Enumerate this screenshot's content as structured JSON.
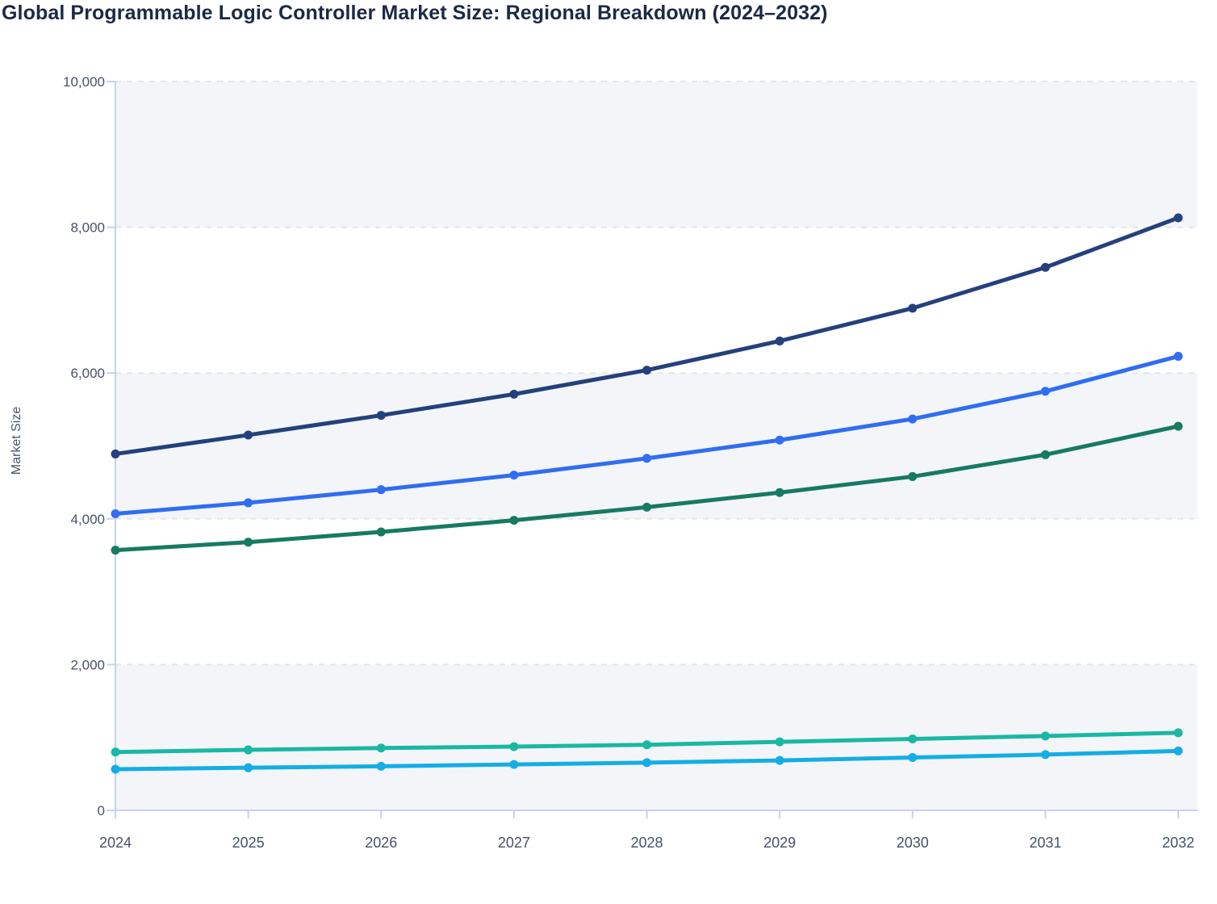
{
  "chart_data": {
    "type": "line",
    "title": "Global Programmable Logic Controller Market Size: Regional Breakdown (2024–2032)",
    "xlabel": "",
    "ylabel": "Market Size",
    "legend": "none",
    "grid": "horizontal-dashed",
    "ylim": [
      0,
      10000
    ],
    "x": [
      "2024",
      "2025",
      "2026",
      "2027",
      "2028",
      "2029",
      "2030",
      "2031",
      "2032"
    ],
    "y_ticks": [
      {
        "value": 0,
        "label": "0"
      },
      {
        "value": 2000,
        "label": "2,000"
      },
      {
        "value": 4000,
        "label": "4,000"
      },
      {
        "value": 6000,
        "label": "6,000"
      },
      {
        "value": 8000,
        "label": "8,000"
      },
      {
        "value": 10000,
        "label": "10,000"
      }
    ],
    "series": [
      {
        "name": "series-navy",
        "color": "#24407d",
        "values": [
          4890,
          5150,
          5420,
          5710,
          6040,
          6440,
          6890,
          7450,
          8130
        ]
      },
      {
        "name": "series-blue",
        "color": "#2f6df2",
        "values": [
          4070,
          4220,
          4400,
          4600,
          4830,
          5080,
          5370,
          5750,
          6230
        ]
      },
      {
        "name": "series-green",
        "color": "#177a62",
        "values": [
          3570,
          3680,
          3820,
          3980,
          4160,
          4360,
          4580,
          4880,
          5270
        ]
      },
      {
        "name": "series-teal",
        "color": "#19b8a2",
        "values": [
          800,
          830,
          855,
          875,
          900,
          940,
          980,
          1020,
          1065
        ]
      },
      {
        "name": "series-cyan",
        "color": "#14ade6",
        "values": [
          565,
          585,
          605,
          630,
          655,
          685,
          725,
          765,
          815
        ]
      }
    ],
    "style": {
      "band_fill": "#f3f5f9",
      "band_ranges": [
        [
          0,
          2000
        ],
        [
          4000,
          6000
        ],
        [
          8000,
          10000
        ]
      ],
      "gridline_color": "#e2e6eb",
      "axis_color": "#c6d2f0",
      "title_color": "#1c2945",
      "tick_label_color": "#47516b",
      "line_width": 5,
      "marker_radius": 5.5
    }
  }
}
